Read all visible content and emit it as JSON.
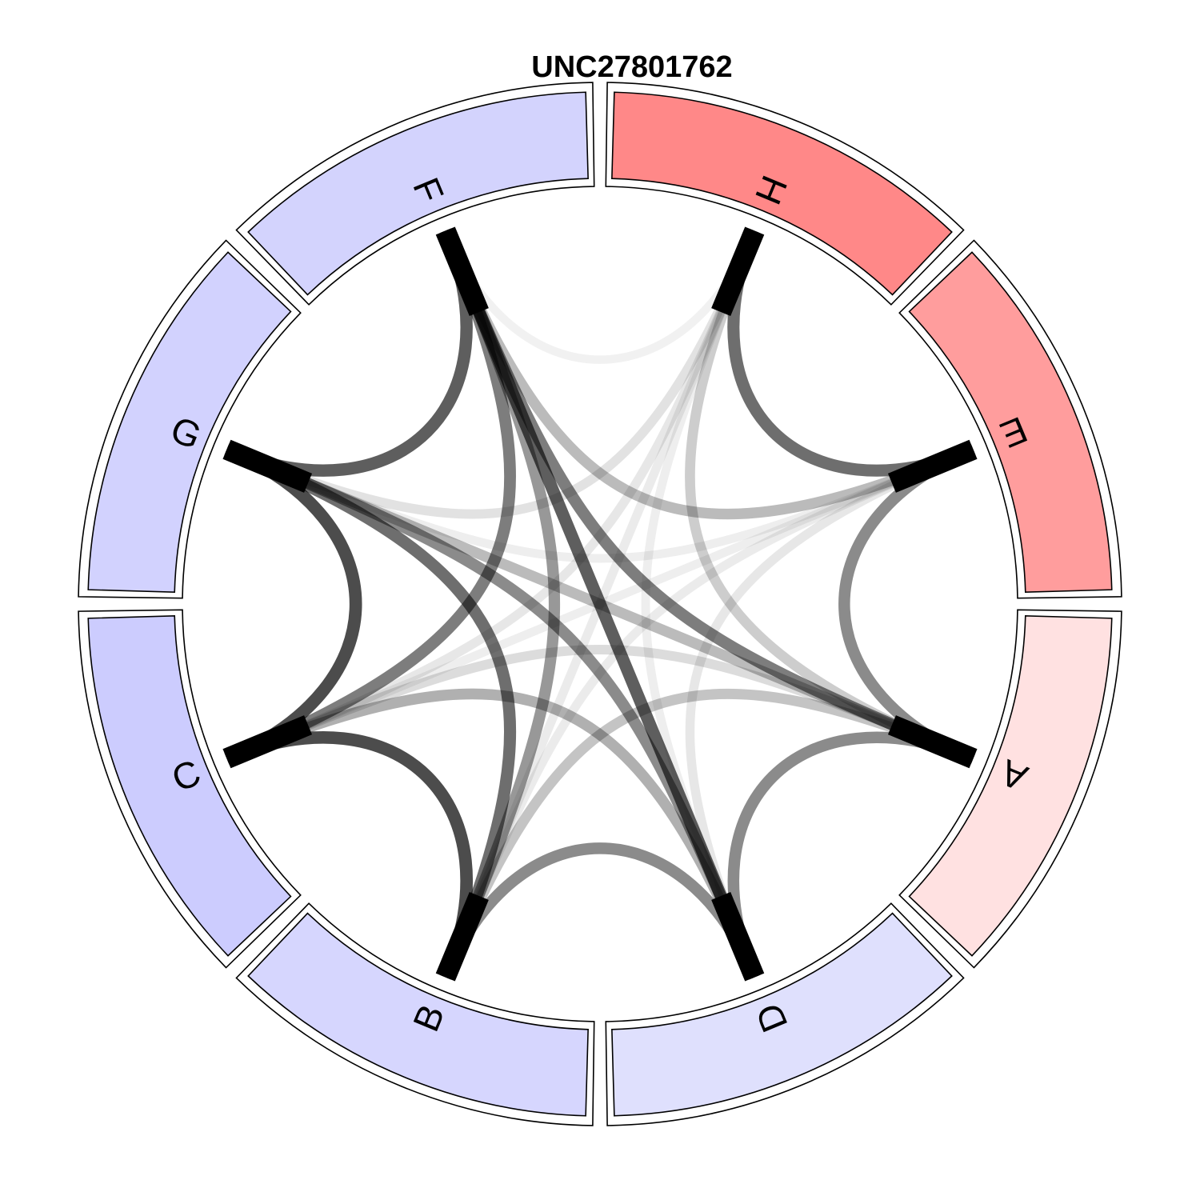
{
  "title": "UNC27801762",
  "chart_data": {
    "type": "chord",
    "title": "UNC27801762",
    "nodes": [
      {
        "id": "H",
        "label": "H",
        "color": "#ff8888"
      },
      {
        "id": "E",
        "label": "E",
        "color": "#ff9d9d"
      },
      {
        "id": "A",
        "label": "A",
        "color": "#ffe1e1"
      },
      {
        "id": "D",
        "label": "D",
        "color": "#dfe0fd"
      },
      {
        "id": "B",
        "label": "B",
        "color": "#d6d6fe"
      },
      {
        "id": "C",
        "label": "C",
        "color": "#ccccfe"
      },
      {
        "id": "G",
        "label": "G",
        "color": "#d2d2fe"
      },
      {
        "id": "F",
        "label": "F",
        "color": "#d3d3fd"
      }
    ],
    "links": [
      {
        "source": "H",
        "target": "E",
        "weight": 0.85
      },
      {
        "source": "H",
        "target": "A",
        "weight": 0.45
      },
      {
        "source": "H",
        "target": "D",
        "weight": 0.15
      },
      {
        "source": "H",
        "target": "B",
        "weight": 0.2
      },
      {
        "source": "H",
        "target": "C",
        "weight": 0.25
      },
      {
        "source": "H",
        "target": "G",
        "weight": 0.3
      },
      {
        "source": "H",
        "target": "F",
        "weight": 0.08
      },
      {
        "source": "E",
        "target": "A",
        "weight": 0.75
      },
      {
        "source": "E",
        "target": "D",
        "weight": 0.25
      },
      {
        "source": "E",
        "target": "B",
        "weight": 0.2
      },
      {
        "source": "E",
        "target": "C",
        "weight": 0.15
      },
      {
        "source": "E",
        "target": "G",
        "weight": 0.15
      },
      {
        "source": "E",
        "target": "F",
        "weight": 0.55
      },
      {
        "source": "A",
        "target": "D",
        "weight": 0.75
      },
      {
        "source": "A",
        "target": "B",
        "weight": 0.5
      },
      {
        "source": "A",
        "target": "C",
        "weight": 0.35
      },
      {
        "source": "A",
        "target": "G",
        "weight": 0.55
      },
      {
        "source": "A",
        "target": "F",
        "weight": 0.8
      },
      {
        "source": "D",
        "target": "B",
        "weight": 0.75
      },
      {
        "source": "D",
        "target": "C",
        "weight": 0.6
      },
      {
        "source": "D",
        "target": "G",
        "weight": 0.75
      },
      {
        "source": "D",
        "target": "F",
        "weight": 0.9
      },
      {
        "source": "B",
        "target": "C",
        "weight": 0.95
      },
      {
        "source": "B",
        "target": "G",
        "weight": 0.85
      },
      {
        "source": "B",
        "target": "F",
        "weight": 0.7
      },
      {
        "source": "C",
        "target": "G",
        "weight": 0.95
      },
      {
        "source": "C",
        "target": "F",
        "weight": 0.8
      },
      {
        "source": "G",
        "target": "F",
        "weight": 0.9
      }
    ]
  }
}
